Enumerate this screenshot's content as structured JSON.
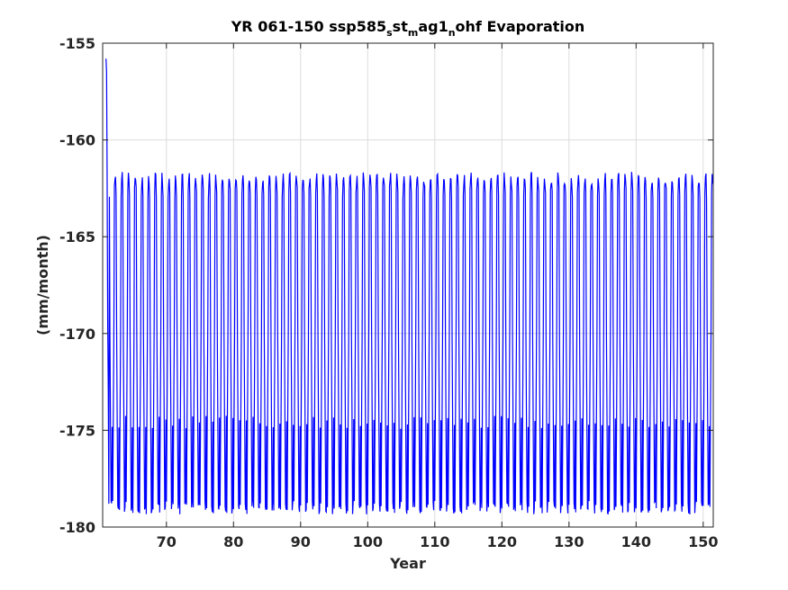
{
  "chart_data": {
    "type": "line",
    "title_parts": [
      {
        "text": "YR 061-150 ssp585",
        "sub": false
      },
      {
        "text": "s",
        "sub": true
      },
      {
        "text": "st",
        "sub": false
      },
      {
        "text": "m",
        "sub": true
      },
      {
        "text": "ag1",
        "sub": false
      },
      {
        "text": "n",
        "sub": true
      },
      {
        "text": "ohf Evaporation",
        "sub": false
      }
    ],
    "xlabel": "Year",
    "ylabel": "(mm/month)",
    "xlim": [
      60.5,
      151.5
    ],
    "ylim": [
      -180,
      -155
    ],
    "xticks": [
      70,
      80,
      90,
      100,
      110,
      120,
      130,
      140,
      150
    ],
    "yticks": [
      -155,
      -160,
      -165,
      -170,
      -175,
      -180
    ],
    "grid": true,
    "color": "#0000ff",
    "series": [
      {
        "seasonal_cycle_approx": {
          "summer_max": -162.0,
          "summer_secondary": -162.7,
          "spring_fall": -170.0,
          "winter_min": -179.0,
          "shoulder_min": -174.6
        },
        "initial_values": [
          -155.8,
          -156.5,
          -162.0,
          -169.5,
          -172.9,
          -178.8
        ]
      }
    ]
  }
}
